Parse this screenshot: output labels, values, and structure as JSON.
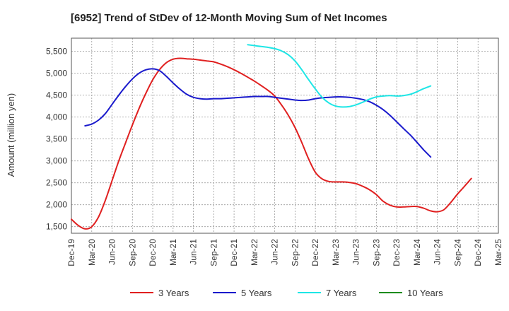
{
  "chart_data": {
    "type": "line",
    "title": "[6952]  Trend of StDev of 12-Month Moving Sum of Net Incomes",
    "ylabel": "Amount (million yen)",
    "xlabel": "",
    "ylim": [
      1350,
      5800
    ],
    "yticks": [
      1500,
      2000,
      2500,
      3000,
      3500,
      4000,
      4500,
      5000,
      5500
    ],
    "ytick_labels": [
      "1,500",
      "2,000",
      "2,500",
      "3,000",
      "3,500",
      "4,000",
      "4,500",
      "5,000",
      "5,500"
    ],
    "x_categories": [
      "Dec-19",
      "Mar-20",
      "Jun-20",
      "Sep-20",
      "Dec-20",
      "Mar-21",
      "Jun-21",
      "Sep-21",
      "Dec-21",
      "Mar-22",
      "Jun-22",
      "Sep-22",
      "Dec-22",
      "Mar-23",
      "Jun-23",
      "Sep-23",
      "Dec-23",
      "Mar-24",
      "Jun-24",
      "Sep-24",
      "Dec-24",
      "Mar-25"
    ],
    "grid": true,
    "legend_position": "bottom",
    "series": [
      {
        "name": "3 Years",
        "color": "#e02020",
        "points": [
          [
            0,
            1670
          ],
          [
            0.33,
            1530
          ],
          [
            0.67,
            1450
          ],
          [
            1,
            1500
          ],
          [
            1.33,
            1720
          ],
          [
            1.67,
            2100
          ],
          [
            2,
            2550
          ],
          [
            2.33,
            3000
          ],
          [
            2.67,
            3420
          ],
          [
            3,
            3820
          ],
          [
            3.33,
            4200
          ],
          [
            3.67,
            4550
          ],
          [
            4,
            4850
          ],
          [
            4.33,
            5080
          ],
          [
            4.67,
            5240
          ],
          [
            5,
            5320
          ],
          [
            5.33,
            5340
          ],
          [
            5.67,
            5330
          ],
          [
            6,
            5320
          ],
          [
            6.33,
            5300
          ],
          [
            6.67,
            5280
          ],
          [
            7,
            5260
          ],
          [
            7.33,
            5210
          ],
          [
            7.67,
            5150
          ],
          [
            8,
            5080
          ],
          [
            8.33,
            5000
          ],
          [
            8.67,
            4910
          ],
          [
            9,
            4820
          ],
          [
            9.33,
            4720
          ],
          [
            9.67,
            4610
          ],
          [
            10,
            4480
          ],
          [
            10.33,
            4280
          ],
          [
            10.67,
            4040
          ],
          [
            11,
            3760
          ],
          [
            11.33,
            3420
          ],
          [
            11.67,
            3040
          ],
          [
            12,
            2740
          ],
          [
            12.33,
            2590
          ],
          [
            12.67,
            2530
          ],
          [
            13,
            2520
          ],
          [
            13.33,
            2520
          ],
          [
            13.67,
            2510
          ],
          [
            14,
            2480
          ],
          [
            14.33,
            2420
          ],
          [
            14.67,
            2340
          ],
          [
            15,
            2230
          ],
          [
            15.33,
            2080
          ],
          [
            15.67,
            1990
          ],
          [
            16,
            1950
          ],
          [
            16.33,
            1950
          ],
          [
            16.67,
            1960
          ],
          [
            17,
            1960
          ],
          [
            17.33,
            1920
          ],
          [
            17.67,
            1860
          ],
          [
            18,
            1840
          ],
          [
            18.33,
            1890
          ],
          [
            18.67,
            2060
          ],
          [
            19,
            2250
          ],
          [
            19.33,
            2420
          ],
          [
            19.67,
            2600
          ]
        ]
      },
      {
        "name": "5 Years",
        "color": "#1a1acc",
        "points": [
          [
            0.67,
            3800
          ],
          [
            1,
            3840
          ],
          [
            1.33,
            3930
          ],
          [
            1.67,
            4080
          ],
          [
            2,
            4290
          ],
          [
            2.33,
            4500
          ],
          [
            2.67,
            4700
          ],
          [
            3,
            4870
          ],
          [
            3.33,
            5000
          ],
          [
            3.67,
            5080
          ],
          [
            4,
            5100
          ],
          [
            4.33,
            5060
          ],
          [
            4.67,
            4930
          ],
          [
            5,
            4780
          ],
          [
            5.33,
            4640
          ],
          [
            5.67,
            4520
          ],
          [
            6,
            4450
          ],
          [
            6.33,
            4420
          ],
          [
            6.67,
            4410
          ],
          [
            7,
            4420
          ],
          [
            7.33,
            4420
          ],
          [
            7.67,
            4430
          ],
          [
            8,
            4440
          ],
          [
            8.33,
            4450
          ],
          [
            8.67,
            4460
          ],
          [
            9,
            4470
          ],
          [
            9.33,
            4470
          ],
          [
            9.67,
            4470
          ],
          [
            10,
            4450
          ],
          [
            10.33,
            4430
          ],
          [
            10.67,
            4410
          ],
          [
            11,
            4390
          ],
          [
            11.33,
            4380
          ],
          [
            11.67,
            4390
          ],
          [
            12,
            4420
          ],
          [
            12.33,
            4440
          ],
          [
            12.67,
            4450
          ],
          [
            13,
            4460
          ],
          [
            13.33,
            4460
          ],
          [
            13.67,
            4450
          ],
          [
            14,
            4430
          ],
          [
            14.33,
            4400
          ],
          [
            14.67,
            4350
          ],
          [
            15,
            4270
          ],
          [
            15.33,
            4170
          ],
          [
            15.67,
            4040
          ],
          [
            16,
            3890
          ],
          [
            16.33,
            3740
          ],
          [
            16.67,
            3590
          ],
          [
            17,
            3420
          ],
          [
            17.33,
            3250
          ],
          [
            17.67,
            3090
          ]
        ]
      },
      {
        "name": "7 Years",
        "color": "#1ee6e6",
        "points": [
          [
            8.67,
            5650
          ],
          [
            9,
            5630
          ],
          [
            9.33,
            5610
          ],
          [
            9.67,
            5590
          ],
          [
            10,
            5560
          ],
          [
            10.33,
            5510
          ],
          [
            10.67,
            5420
          ],
          [
            11,
            5280
          ],
          [
            11.33,
            5080
          ],
          [
            11.67,
            4850
          ],
          [
            12,
            4640
          ],
          [
            12.33,
            4450
          ],
          [
            12.67,
            4320
          ],
          [
            13,
            4250
          ],
          [
            13.33,
            4230
          ],
          [
            13.67,
            4240
          ],
          [
            14,
            4280
          ],
          [
            14.33,
            4340
          ],
          [
            14.67,
            4410
          ],
          [
            15,
            4460
          ],
          [
            15.33,
            4480
          ],
          [
            15.67,
            4490
          ],
          [
            16,
            4480
          ],
          [
            16.33,
            4490
          ],
          [
            16.67,
            4520
          ],
          [
            17,
            4580
          ],
          [
            17.33,
            4650
          ],
          [
            17.67,
            4710
          ]
        ]
      },
      {
        "name": "10 Years",
        "color": "#1e8c1e",
        "points": []
      }
    ]
  }
}
